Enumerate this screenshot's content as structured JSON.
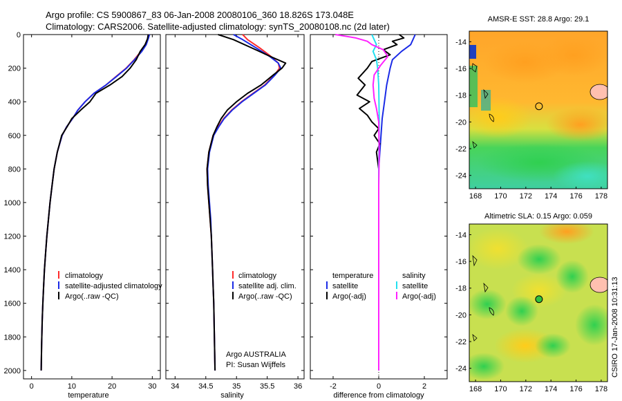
{
  "header": {
    "line1": "Argo profile: CS 5900867_83 06-Jan-2008 20080106_360 18.826S 173.048E",
    "line2": "Climatology: CARS2006. Satellite-adjusted climatology: synTS_20080108.nc (2d later)"
  },
  "side_label": "CSIRO 17-Jan-2008 10:31:13",
  "colors": {
    "climatology": "#ff2a2a",
    "satellite": "#1a2ae6",
    "argo": "#000000",
    "sal_satellite": "#22e0f0",
    "sal_argo": "#ff20ff"
  },
  "chart_data": [
    {
      "type": "line",
      "name": "temperature-profile",
      "xlabel": "temperature",
      "ylabel": "",
      "xlim": [
        -2,
        32
      ],
      "ylim": [
        2050,
        0
      ],
      "xticks": [
        0,
        10,
        20,
        30
      ],
      "yticks": [
        0,
        200,
        400,
        600,
        800,
        1000,
        1200,
        1400,
        1600,
        1800,
        2000
      ],
      "legend": [
        "climatology",
        "satellite-adjusted climatology",
        "Argo(..raw -QC)"
      ],
      "series": [
        {
          "name": "climatology",
          "color_key": "climatology",
          "x": [
            29.2,
            28.9,
            28.3,
            27.2,
            25.5,
            23.5,
            21.0,
            18.5,
            15.5,
            13.3,
            11.5,
            10.2,
            8.7,
            7.6,
            6.4,
            5.6,
            5.1,
            4.6,
            4.2,
            3.8,
            3.5,
            3.2,
            3.0,
            2.8,
            2.65,
            2.5,
            2.4
          ],
          "y": [
            0,
            25,
            60,
            100,
            150,
            200,
            250,
            300,
            350,
            400,
            450,
            500,
            550,
            600,
            700,
            800,
            900,
            1000,
            1100,
            1200,
            1300,
            1400,
            1500,
            1600,
            1700,
            1850,
            2000
          ]
        },
        {
          "name": "satellite-adjusted climatology",
          "color_key": "satellite",
          "x": [
            29.3,
            29.0,
            28.5,
            27.4,
            25.6,
            23.6,
            21.1,
            18.5,
            15.5,
            13.3,
            11.5,
            10.2,
            8.7,
            7.6,
            6.4,
            5.6,
            5.1,
            4.6,
            4.2,
            3.8,
            3.5,
            3.2,
            3.0,
            2.8,
            2.65,
            2.5,
            2.4
          ],
          "y": [
            0,
            25,
            60,
            100,
            150,
            200,
            250,
            300,
            350,
            400,
            450,
            500,
            550,
            600,
            700,
            800,
            900,
            1000,
            1100,
            1200,
            1300,
            1400,
            1500,
            1600,
            1700,
            1850,
            2000
          ]
        },
        {
          "name": "Argo(..raw -QC)",
          "color_key": "argo",
          "x": [
            29.0,
            28.8,
            28.2,
            27.0,
            26.0,
            24.5,
            22.5,
            19.5,
            16.0,
            14.5,
            12.2,
            10.0,
            8.8,
            7.5,
            6.4,
            5.6,
            5.1,
            4.6,
            4.2,
            3.8,
            3.5,
            3.2,
            3.0,
            2.8,
            2.65,
            2.5,
            2.4
          ],
          "y": [
            0,
            25,
            60,
            100,
            150,
            200,
            250,
            300,
            350,
            400,
            450,
            500,
            550,
            600,
            700,
            800,
            900,
            1000,
            1100,
            1200,
            1300,
            1400,
            1500,
            1600,
            1700,
            1850,
            2000
          ]
        }
      ]
    },
    {
      "type": "line",
      "name": "salinity-profile",
      "xlabel": "salinity",
      "xlim": [
        33.85,
        36.1
      ],
      "ylim": [
        2050,
        0
      ],
      "xticks": [
        34,
        34.5,
        35,
        35.5,
        36
      ],
      "yticks": [
        0,
        200,
        400,
        600,
        800,
        1000,
        1200,
        1400,
        1600,
        1800,
        2000
      ],
      "legend": [
        "climatology",
        "satellite adj. clim.",
        "Argo(..raw -QC)"
      ],
      "annotation": [
        "Argo AUSTRALIA",
        "PI: Susan Wijffels"
      ],
      "series": [
        {
          "name": "climatology",
          "color_key": "climatology",
          "x": [
            35.1,
            35.18,
            35.38,
            35.56,
            35.68,
            35.7,
            35.62,
            35.46,
            35.27,
            35.08,
            34.92,
            34.79,
            34.7,
            34.62,
            34.55,
            34.52,
            34.53,
            34.55,
            34.57,
            34.59,
            34.6,
            34.61,
            34.62,
            34.63,
            34.64,
            34.65
          ],
          "y": [
            0,
            30,
            80,
            130,
            170,
            200,
            240,
            300,
            350,
            400,
            450,
            500,
            550,
            600,
            700,
            800,
            900,
            1000,
            1100,
            1200,
            1300,
            1400,
            1500,
            1600,
            1800,
            2000
          ]
        },
        {
          "name": "satellite adj. clim.",
          "color_key": "satellite",
          "x": [
            34.95,
            35.1,
            35.32,
            35.54,
            35.68,
            35.72,
            35.63,
            35.47,
            35.28,
            35.09,
            34.93,
            34.8,
            34.71,
            34.63,
            34.56,
            34.53,
            34.54,
            34.56,
            34.58,
            34.59,
            34.6,
            34.61,
            34.62,
            34.63,
            34.64,
            34.65
          ],
          "y": [
            0,
            30,
            80,
            130,
            170,
            200,
            240,
            300,
            350,
            400,
            450,
            500,
            550,
            600,
            700,
            800,
            900,
            1000,
            1100,
            1200,
            1300,
            1400,
            1500,
            1600,
            1800,
            2000
          ]
        },
        {
          "name": "Argo(..raw -QC)",
          "color_key": "argo",
          "x": [
            34.7,
            34.95,
            35.25,
            35.55,
            35.8,
            35.74,
            35.6,
            35.4,
            35.18,
            35.0,
            34.85,
            34.75,
            34.68,
            34.62,
            34.55,
            34.52,
            34.53,
            34.55,
            34.57,
            34.59,
            34.6,
            34.61,
            34.62,
            34.63,
            34.64,
            34.65
          ],
          "y": [
            0,
            30,
            80,
            130,
            170,
            200,
            240,
            300,
            350,
            400,
            450,
            500,
            550,
            600,
            700,
            800,
            900,
            1000,
            1100,
            1200,
            1300,
            1400,
            1500,
            1600,
            1800,
            2000
          ]
        }
      ]
    },
    {
      "type": "line",
      "name": "difference-profile",
      "xlabel": "difference from climatology",
      "xlim": [
        -3.0,
        3.0
      ],
      "ylim": [
        2050,
        0
      ],
      "xticks": [
        -2,
        0,
        2
      ],
      "yticks": [
        0,
        200,
        400,
        600,
        800,
        1000,
        1200,
        1400,
        1600,
        1800,
        2000
      ],
      "legend_temperature": {
        "heading": "temperature",
        "items": [
          "satellite",
          "Argo(-adj)"
        ]
      },
      "legend_salinity": {
        "heading": "salinity",
        "items": [
          "satellite",
          "Argo(-adj)"
        ]
      },
      "series": [
        {
          "name": "temperature satellite",
          "color_key": "satellite",
          "x": [
            1.6,
            1.5,
            1.4,
            1.0,
            0.6,
            0.5,
            0.35,
            0.25,
            0.15,
            0.1,
            0.05,
            0.0,
            0.0,
            0.0,
            0.0,
            0.0,
            0.0
          ],
          "y": [
            0,
            30,
            60,
            100,
            150,
            200,
            300,
            400,
            500,
            600,
            700,
            800,
            1000,
            1200,
            1500,
            1800,
            2000
          ]
        },
        {
          "name": "temperature Argo(-adj)",
          "color_key": "argo",
          "x": [
            0.9,
            1.1,
            0.6,
            0.8,
            0.2,
            0.5,
            -0.3,
            -0.5,
            -0.9,
            -0.6,
            -0.95,
            -0.4,
            -0.85,
            -0.5,
            -0.3,
            0.0,
            -0.2,
            0.05,
            -0.1,
            0.0,
            0.0,
            0.0
          ],
          "y": [
            0,
            20,
            40,
            60,
            90,
            120,
            160,
            200,
            260,
            300,
            360,
            400,
            440,
            480,
            520,
            560,
            600,
            650,
            700,
            800,
            1000,
            2000
          ]
        },
        {
          "name": "salinity satellite",
          "color_key": "sal_satellite",
          "x": [
            -0.3,
            -0.2,
            -0.1,
            -0.25,
            -0.1,
            -0.05,
            0.0,
            0.02,
            0.0,
            0.0,
            0.0,
            0.0
          ],
          "y": [
            0,
            30,
            60,
            100,
            150,
            200,
            300,
            500,
            800,
            1000,
            1500,
            2000
          ]
        },
        {
          "name": "salinity Argo(-adj)",
          "color_key": "sal_argo",
          "x": [
            -1.9,
            -1.0,
            -0.5,
            -0.3,
            0.2,
            0.4,
            0.1,
            -0.2,
            -0.25,
            -0.2,
            -0.1,
            0.0,
            0.02,
            0.0,
            0.0,
            0.0
          ],
          "y": [
            0,
            20,
            40,
            60,
            90,
            130,
            180,
            240,
            300,
            380,
            440,
            520,
            700,
            900,
            1200,
            2000
          ]
        }
      ]
    },
    {
      "type": "heatmap",
      "name": "sst-map",
      "title": "AMSR-E SST: 28.8 Argo: 29.1",
      "xlim": [
        167.5,
        178.5
      ],
      "ylim": [
        -25,
        -13.2
      ],
      "xticks": [
        168,
        170,
        172,
        174,
        176,
        178
      ],
      "yticks": [
        -14,
        -16,
        -18,
        -20,
        -22,
        -24
      ],
      "marker": {
        "lon": 173.048,
        "lat": -18.826
      }
    },
    {
      "type": "heatmap",
      "name": "sla-map",
      "title": "Altimetric SLA: 0.15 Argo: 0.059",
      "xlim": [
        167.5,
        178.5
      ],
      "ylim": [
        -25,
        -13.2
      ],
      "xticks": [
        168,
        170,
        172,
        174,
        176,
        178
      ],
      "yticks": [
        -14,
        -16,
        -18,
        -20,
        -22,
        -24
      ],
      "marker": {
        "lon": 173.048,
        "lat": -18.826
      }
    }
  ]
}
